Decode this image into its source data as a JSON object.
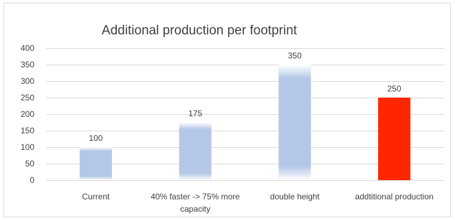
{
  "chart_data": {
    "type": "bar",
    "title": "Additional production per footprint",
    "categories": [
      [
        "Current"
      ],
      [
        "40% faster -> 75% more",
        "capacity"
      ],
      [
        "double height"
      ],
      [
        "addtitional production"
      ]
    ],
    "values": [
      100,
      175,
      350,
      250
    ],
    "data_labels": [
      "100",
      "175",
      "350",
      "250"
    ],
    "bar_styles": [
      "gradient",
      "gradient",
      "gradient",
      "solid"
    ],
    "colors": {
      "bar": "#b4c7e7",
      "highlight": "#ff2600",
      "grid": "#d9d9d9",
      "text": "#404040"
    },
    "ylim": [
      0,
      400
    ],
    "yticks": [
      "0",
      "50",
      "100",
      "150",
      "200",
      "250",
      "300",
      "350",
      "400"
    ],
    "grid": true,
    "legend": "none"
  }
}
